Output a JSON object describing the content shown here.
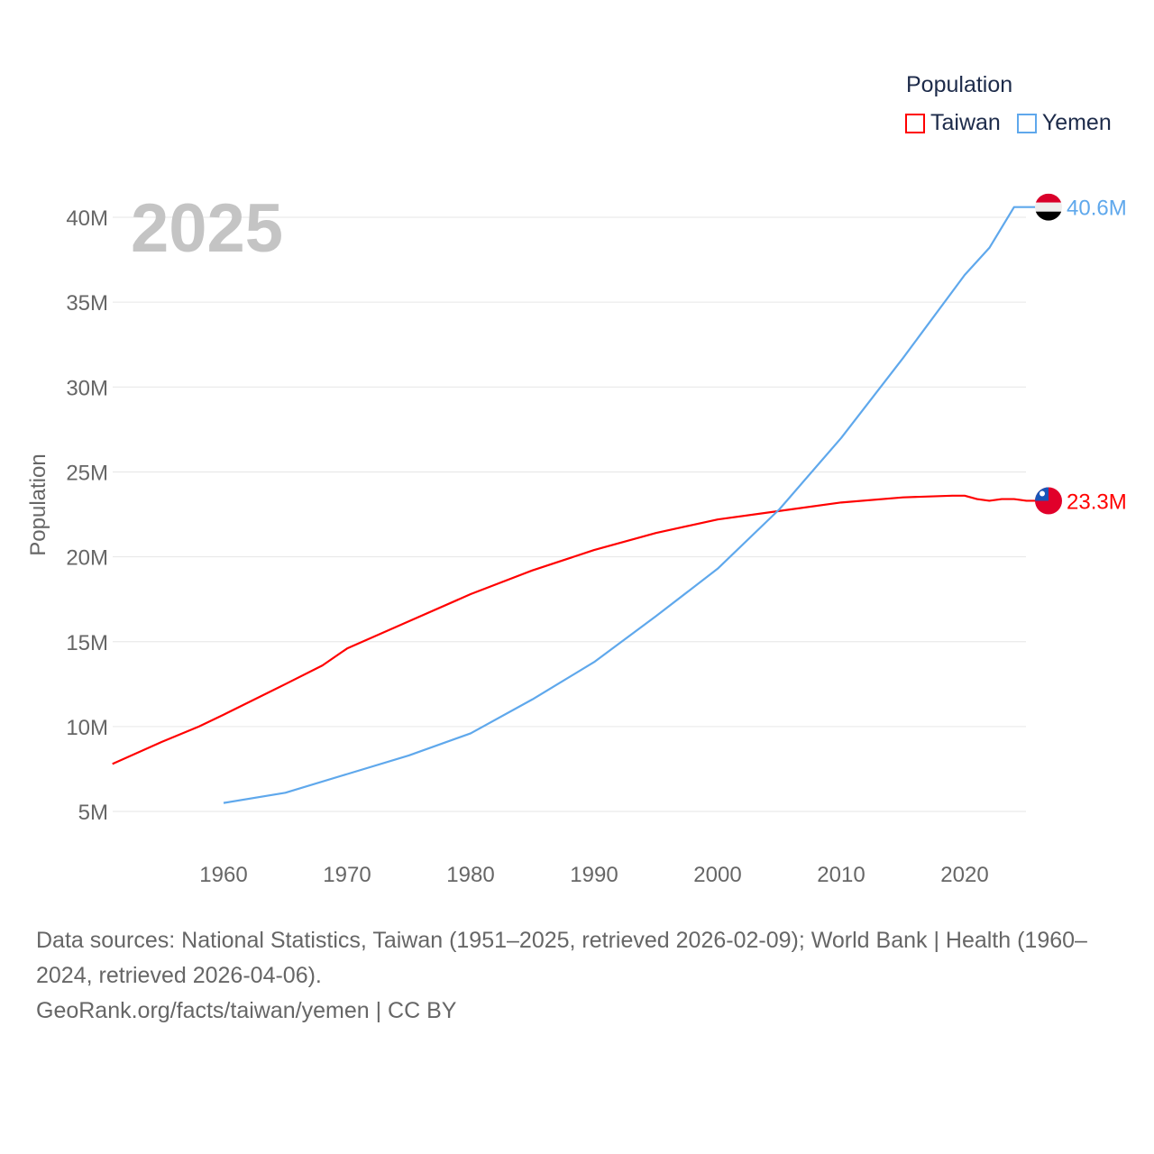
{
  "chart_data": {
    "type": "line",
    "title": "Population",
    "ylabel": "Population",
    "xlabel": "",
    "year_label": "2025",
    "ylim": [
      3000000,
      42000000
    ],
    "xlim": [
      1951,
      2025
    ],
    "x_ticks": [
      1960,
      1970,
      1980,
      1990,
      2000,
      2010,
      2020
    ],
    "y_ticks": [
      {
        "v": 5,
        "label": "5M"
      },
      {
        "v": 10,
        "label": "10M"
      },
      {
        "v": 15,
        "label": "15M"
      },
      {
        "v": 20,
        "label": "20M"
      },
      {
        "v": 25,
        "label": "25M"
      },
      {
        "v": 30,
        "label": "30M"
      },
      {
        "v": 35,
        "label": "35M"
      },
      {
        "v": 40,
        "label": "40M"
      }
    ],
    "legend_placement": "top-right",
    "series": [
      {
        "name": "Taiwan",
        "color": "#ff0000",
        "end_label": "23.3M",
        "unit": "millions",
        "x": [
          1951,
          1955,
          1958,
          1960,
          1965,
          1968,
          1970,
          1975,
          1980,
          1985,
          1990,
          1995,
          2000,
          2005,
          2010,
          2015,
          2019,
          2020,
          2021,
          2022,
          2023,
          2024,
          2025
        ],
        "values": [
          7.8,
          9.1,
          10.0,
          10.7,
          12.5,
          13.6,
          14.6,
          16.2,
          17.8,
          19.2,
          20.4,
          21.4,
          22.2,
          22.7,
          23.2,
          23.5,
          23.6,
          23.6,
          23.4,
          23.3,
          23.4,
          23.4,
          23.3
        ]
      },
      {
        "name": "Yemen",
        "color": "#5fa8ec",
        "end_label": "40.6M",
        "unit": "millions",
        "x": [
          1960,
          1965,
          1970,
          1975,
          1980,
          1985,
          1990,
          1995,
          2000,
          2005,
          2010,
          2015,
          2020,
          2022,
          2024
        ],
        "values": [
          5.5,
          6.1,
          7.2,
          8.3,
          9.6,
          11.6,
          13.8,
          16.5,
          19.3,
          22.8,
          27.0,
          31.7,
          36.6,
          38.2,
          40.6
        ]
      }
    ]
  },
  "source": {
    "line1": "Data sources: National Statistics, Taiwan (1951–2025, retrieved 2026-02-09); World Bank | Health (1960–2024, retrieved 2026-04-06).",
    "line2": "GeoRank.org/facts/taiwan/yemen | CC BY"
  }
}
